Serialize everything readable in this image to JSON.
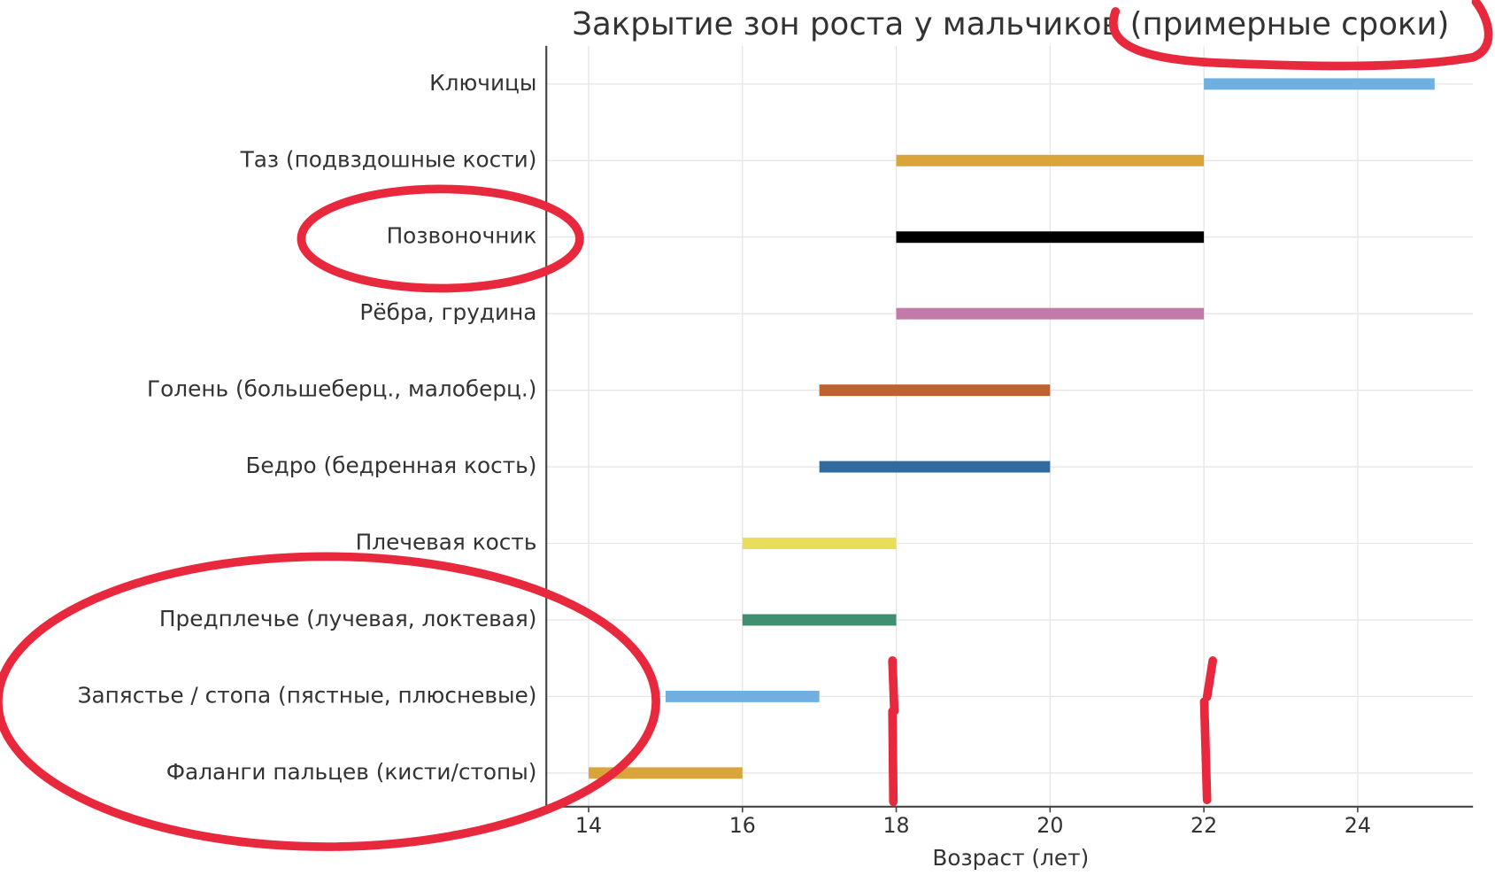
{
  "chart_data": {
    "type": "range-bar",
    "title": "Закрытие зон роста у мальчиков (примерные сроки)",
    "x_label": "Возраст (лет)",
    "categories": [
      "Ключицы",
      "Таз (подвздошные кости)",
      "Позвоночник",
      "Рёбра, грудина",
      "Голень (большеберц., малоберц.)",
      "Бедро (бедренная кость)",
      "Плечевая кость",
      "Предплечье (лучевая, локтевая)",
      "Запястье / стопа (пястные, плюсневые)",
      "Фаланги пальцев (кисти/стопы)"
    ],
    "start": [
      22,
      18,
      18,
      18,
      17,
      17,
      16,
      16,
      15,
      14
    ],
    "end": [
      25,
      22,
      22,
      22,
      20,
      20,
      18,
      18,
      17,
      16
    ],
    "colors": [
      "#6fb0e0",
      "#d9a53a",
      "#000000",
      "#c47aa8",
      "#c0622e",
      "#2f6b9c",
      "#e8de5a",
      "#3f8f70",
      "#6fb0e0",
      "#d9a53a"
    ],
    "xlim": [
      13.45,
      25.5
    ],
    "xticks": [
      14,
      16,
      18,
      20,
      22,
      24
    ],
    "grid": true
  }
}
